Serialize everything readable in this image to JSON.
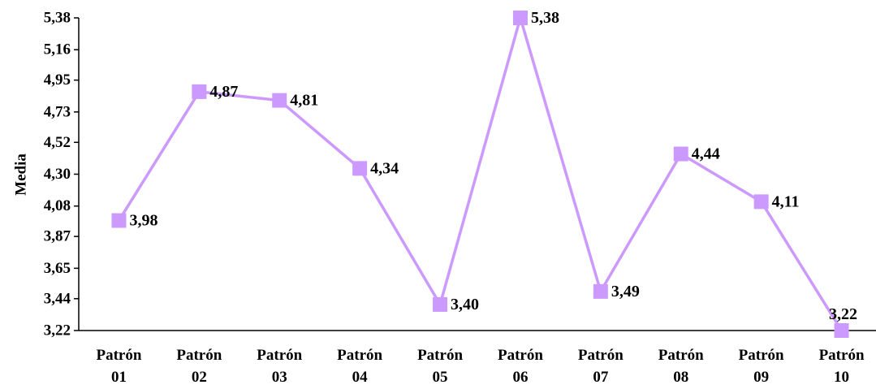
{
  "chart_data": {
    "type": "line",
    "categories": [
      "Patrón 01",
      "Patrón 02",
      "Patrón 03",
      "Patrón 04",
      "Patrón 05",
      "Patrón 06",
      "Patrón 07",
      "Patrón 08",
      "Patrón 09",
      "Patrón 10"
    ],
    "category_lines": [
      [
        "Patrón",
        "01"
      ],
      [
        "Patrón",
        "02"
      ],
      [
        "Patrón",
        "03"
      ],
      [
        "Patrón",
        "04"
      ],
      [
        "Patrón",
        "05"
      ],
      [
        "Patrón",
        "06"
      ],
      [
        "Patrón",
        "07"
      ],
      [
        "Patrón",
        "08"
      ],
      [
        "Patrón",
        "09"
      ],
      [
        "Patrón",
        "10"
      ]
    ],
    "values": [
      3.98,
      4.87,
      4.81,
      4.34,
      3.4,
      5.38,
      3.49,
      4.44,
      4.11,
      3.22
    ],
    "data_labels": [
      "3,98",
      "4,87",
      "4,81",
      "4,34",
      "3,40",
      "5,38",
      "3,49",
      "4,44",
      "4,11",
      "3,22"
    ],
    "title": "",
    "xlabel": "",
    "ylabel": "Media",
    "ylim": [
      3.22,
      5.38
    ],
    "yticks": [
      3.22,
      3.44,
      3.65,
      3.87,
      4.08,
      4.3,
      4.52,
      4.73,
      4.95,
      5.16,
      5.38
    ],
    "ytick_labels": [
      "3,22",
      "3,44",
      "3,65",
      "3,87",
      "4,08",
      "4,30",
      "4,52",
      "4,73",
      "4,95",
      "5,16",
      "5,38"
    ],
    "grid": false,
    "legend": "none",
    "marker": "square",
    "colors": {
      "line": "#cc99ff",
      "marker": "#cc99ff",
      "axis": "#000000"
    }
  }
}
